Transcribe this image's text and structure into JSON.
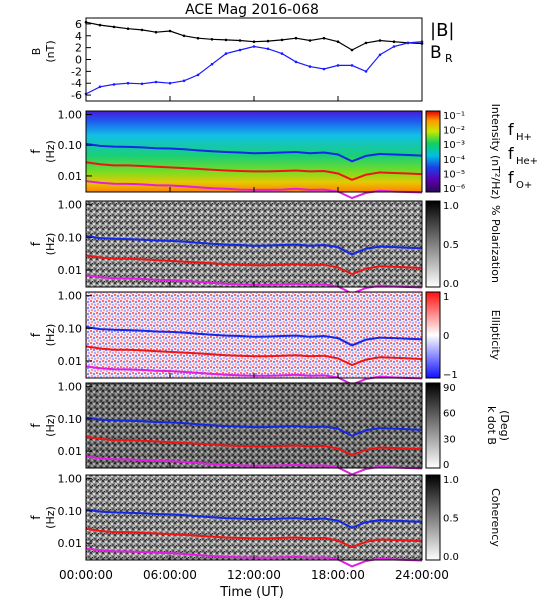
{
  "title": "ACE Mag 2016-068",
  "xlabel": "Time (UT)",
  "x_ticks": [
    "00:00:00",
    "06:00:00",
    "12:00:00",
    "18:00:00",
    "24:00:00"
  ],
  "colors": {
    "mag_total": "#000000",
    "mag_radial": "#1a1aff",
    "f_hplus": "#1428e6",
    "f_heplus": "#ee1515",
    "f_oplus": "#e11ee1"
  },
  "chart_data": [
    {
      "type": "line",
      "panel": "magnetic-field",
      "ylabel": "B",
      "yunit": "(nT)",
      "ylim": [
        -7,
        7
      ],
      "yticks": [
        "6",
        "4",
        "2",
        "0",
        "-2",
        "-4",
        "-6"
      ],
      "x": [
        0,
        1,
        2,
        3,
        4,
        5,
        6,
        7,
        8,
        9,
        10,
        11,
        12,
        13,
        14,
        15,
        16,
        17,
        18,
        19,
        20,
        21,
        22,
        23,
        24
      ],
      "series": [
        {
          "name": "|B|",
          "values": [
            6.3,
            5.8,
            5.5,
            5.2,
            5.0,
            4.6,
            4.8,
            4.0,
            3.6,
            3.4,
            3.3,
            3.2,
            3.0,
            3.1,
            3.3,
            3.6,
            3.2,
            3.6,
            3.0,
            1.6,
            2.8,
            3.2,
            3.0,
            2.8,
            2.7
          ]
        },
        {
          "name": "B_R",
          "values": [
            -5.8,
            -4.6,
            -4.2,
            -4.0,
            -4.1,
            -3.8,
            -4.0,
            -3.6,
            -2.6,
            -0.8,
            1.0,
            1.6,
            2.2,
            1.8,
            1.0,
            -0.4,
            -1.2,
            -1.6,
            -1.0,
            -1.0,
            -2.0,
            0.8,
            2.2,
            2.8,
            3.0
          ]
        }
      ],
      "legend": [
        "|B|",
        "B_R"
      ]
    },
    {
      "type": "heatmap",
      "panel": "intensity",
      "ylabel": "f",
      "yunit": "(Hz)",
      "yticks": [
        "1.00",
        "0.10",
        "0.01"
      ],
      "colorbar": {
        "label": "Intensity (nT²/Hz)",
        "ticks": [
          "10⁻¹",
          "10⁻²",
          "10⁻³",
          "10⁻⁴",
          "10⁻⁵",
          "10⁻⁶"
        ],
        "colormap": "rainbow"
      },
      "legend": [
        "f_H+",
        "f_He+",
        "f_O+"
      ]
    },
    {
      "type": "heatmap",
      "panel": "polarization",
      "ylabel": "f",
      "yunit": "(Hz)",
      "yticks": [
        "1.00",
        "0.10",
        "0.01"
      ],
      "colorbar": {
        "label": "% Polarization",
        "ticks": [
          "1.0",
          "0.5",
          "0.0"
        ],
        "colormap": "gray"
      }
    },
    {
      "type": "heatmap",
      "panel": "ellipticity",
      "ylabel": "f",
      "yunit": "(Hz)",
      "yticks": [
        "1.00",
        "0.10",
        "0.01"
      ],
      "colorbar": {
        "label": "Ellipticity",
        "ticks": [
          "1",
          "0",
          "−1"
        ],
        "colormap": "blue-white-red"
      }
    },
    {
      "type": "heatmap",
      "panel": "k-dot-b",
      "ylabel": "f",
      "yunit": "(Hz)",
      "yticks": [
        "1.00",
        "0.10",
        "0.01"
      ],
      "colorbar": {
        "label_line1": "k dot B",
        "label_line2": "(Deg)",
        "ticks": [
          "90",
          "60",
          "30",
          "0"
        ],
        "colormap": "gray"
      }
    },
    {
      "type": "heatmap",
      "panel": "coherency",
      "ylabel": "f",
      "yunit": "(Hz)",
      "yticks": [
        "1.00",
        "0.10",
        "0.01"
      ],
      "colorbar": {
        "label": "Coherency",
        "ticks": [
          "1.0",
          "0.5",
          "0.0"
        ],
        "colormap": "gray"
      }
    }
  ],
  "gyrofrequency_lines": {
    "x": [
      0,
      1,
      2,
      3,
      4,
      5,
      6,
      7,
      8,
      9,
      10,
      11,
      12,
      13,
      14,
      15,
      16,
      17,
      18,
      19,
      20,
      21,
      22,
      23,
      24
    ],
    "f_hplus": [
      0.11,
      0.095,
      0.09,
      0.088,
      0.085,
      0.08,
      0.078,
      0.074,
      0.068,
      0.064,
      0.06,
      0.058,
      0.055,
      0.056,
      0.058,
      0.06,
      0.055,
      0.058,
      0.05,
      0.03,
      0.045,
      0.052,
      0.05,
      0.048,
      0.046
    ],
    "f_heplus": [
      0.028,
      0.024,
      0.022,
      0.022,
      0.021,
      0.02,
      0.019,
      0.018,
      0.017,
      0.016,
      0.015,
      0.0145,
      0.014,
      0.014,
      0.0145,
      0.015,
      0.014,
      0.0145,
      0.012,
      0.0075,
      0.011,
      0.013,
      0.0125,
      0.012,
      0.0115
    ],
    "f_oplus": [
      0.0068,
      0.006,
      0.0056,
      0.0055,
      0.0053,
      0.005,
      0.0049,
      0.0046,
      0.0043,
      0.004,
      0.0038,
      0.0036,
      0.0035,
      0.0035,
      0.0036,
      0.0038,
      0.0035,
      0.0036,
      0.0031,
      0.0019,
      0.0028,
      0.0033,
      0.0031,
      0.003,
      0.0029
    ]
  }
}
